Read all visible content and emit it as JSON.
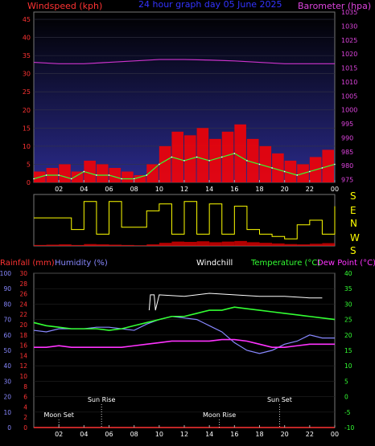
{
  "header": {
    "title": "24 hour graph day  05 June 2025",
    "left_label": "Windspeed (kph)",
    "right_label": "Barometer (hpa)"
  },
  "bottom_header": {
    "rainfall": "Rainfall (mm)",
    "humidity": "Humidity (%)",
    "windchill": "Windchill",
    "temperature": "Temperature (°C)",
    "dewpoint": "Dew Point (°C)"
  },
  "hour_ticks": [
    "02",
    "04",
    "06",
    "08",
    "10",
    "12",
    "14",
    "16",
    "18",
    "20",
    "22",
    "00"
  ],
  "compass_labels": [
    "S",
    "E",
    "N",
    "W",
    "S"
  ],
  "events": [
    {
      "label": "Moon Set",
      "hour": 2.0
    },
    {
      "label": "Sun Rise",
      "hour": 5.4
    },
    {
      "label": "Sun Set",
      "hour": 19.6
    },
    {
      "label": "Moon Rise",
      "hour": 14.8
    }
  ],
  "colors": {
    "wind": "#ff2020",
    "gust_area": "#ff0000",
    "barometer": "#cc33cc",
    "direction": "#ffff00",
    "humidity": "#8888ff",
    "temperature": "#33ff33",
    "dewpoint": "#ff33ff",
    "windchill": "#ffffff",
    "rainfall": "#ff3333"
  },
  "chart_data": [
    {
      "type": "line",
      "title": "24 hour graph day  05 June 2025",
      "ylabel": "Windspeed (kph)",
      "y2label": "Barometer (hpa)",
      "xlim": [
        0,
        24
      ],
      "ylim": [
        0,
        47
      ],
      "y2lim": [
        974,
        1035
      ],
      "y_ticks": [
        0,
        5,
        10,
        15,
        20,
        25,
        30,
        35,
        40,
        45
      ],
      "y2_ticks": [
        975,
        980,
        985,
        990,
        995,
        1000,
        1005,
        1010,
        1015,
        1020,
        1025,
        1030,
        1035
      ],
      "series": [
        {
          "key": "gust",
          "x": [
            0,
            1,
            2,
            3,
            4,
            5,
            6,
            7,
            8,
            9,
            10,
            11,
            12,
            13,
            14,
            15,
            16,
            17,
            18,
            19,
            20,
            21,
            22,
            23,
            24
          ],
          "values": [
            3,
            4,
            5,
            3,
            6,
            5,
            4,
            3,
            2,
            5,
            10,
            14,
            13,
            15,
            12,
            14,
            16,
            12,
            10,
            8,
            6,
            5,
            7,
            9,
            11
          ]
        },
        {
          "key": "wind",
          "x": [
            0,
            1,
            2,
            3,
            4,
            5,
            6,
            7,
            8,
            9,
            10,
            11,
            12,
            13,
            14,
            15,
            16,
            17,
            18,
            19,
            20,
            21,
            22,
            23,
            24
          ],
          "values": [
            1,
            2,
            2,
            1,
            3,
            2,
            2,
            1,
            1,
            2,
            5,
            7,
            6,
            7,
            6,
            7,
            8,
            6,
            5,
            4,
            3,
            2,
            3,
            4,
            5
          ]
        },
        {
          "key": "barometer",
          "x": [
            0,
            2,
            4,
            6,
            8,
            10,
            12,
            14,
            16,
            18,
            20,
            22,
            24
          ],
          "values": [
            1017,
            1016.5,
            1016.5,
            1017,
            1017.5,
            1018,
            1018,
            1017.8,
            1017.5,
            1017,
            1016.5,
            1016.5,
            1016.5
          ]
        }
      ]
    },
    {
      "type": "line",
      "title": "",
      "ylabel": "Wind Direction",
      "xlim": [
        0,
        24
      ],
      "series": [
        {
          "key": "direction",
          "x": [
            0,
            1,
            2,
            3,
            4,
            5,
            6,
            7,
            8,
            9,
            10,
            11,
            12,
            13,
            14,
            15,
            16,
            17,
            18,
            19,
            20,
            21,
            22,
            23,
            24
          ],
          "values": [
            0.55,
            0.55,
            0.55,
            0.3,
            0.9,
            0.2,
            0.9,
            0.35,
            0.35,
            0.7,
            0.85,
            0.2,
            0.9,
            0.2,
            0.85,
            0.2,
            0.8,
            0.3,
            0.2,
            0.15,
            0.1,
            0.4,
            0.5,
            0.2,
            0.8
          ]
        }
      ]
    },
    {
      "type": "line",
      "title": "",
      "xlim": [
        0,
        24
      ],
      "y_left1": {
        "label": "Humidity (%)",
        "ticks": [
          0,
          10,
          20,
          30,
          40,
          50,
          60,
          70,
          80,
          90,
          100
        ],
        "lim": [
          0,
          100
        ]
      },
      "y_left2": {
        "label": "Rainfall (mm)",
        "ticks": [
          0,
          2,
          4,
          6,
          8,
          10,
          12,
          14,
          16,
          18,
          20,
          22,
          24,
          26,
          28,
          30
        ],
        "lim": [
          0,
          30
        ]
      },
      "y_right": {
        "label": "Temperature (°C)",
        "ticks": [
          -10,
          -5,
          0,
          5,
          10,
          15,
          20,
          25,
          30,
          35,
          40
        ],
        "lim": [
          -10,
          40
        ]
      },
      "series": [
        {
          "key": "windchill",
          "unit": "°C",
          "x": [
            9.2,
            9.3,
            9.6,
            9.7,
            10,
            12,
            14,
            16,
            18,
            20,
            22,
            23
          ],
          "values": [
            28,
            33,
            33,
            28,
            33,
            32.5,
            33.5,
            33,
            32.5,
            32.5,
            32,
            32
          ]
        },
        {
          "key": "humidity",
          "unit": "%",
          "x": [
            0,
            1,
            2,
            3,
            4,
            5,
            6,
            7,
            8,
            9,
            10,
            11,
            12,
            13,
            14,
            15,
            16,
            17,
            18,
            19,
            20,
            21,
            22,
            23,
            24
          ],
          "values": [
            63,
            62,
            64,
            64,
            64,
            65,
            65,
            64,
            63,
            67,
            70,
            72,
            71,
            70,
            66,
            62,
            55,
            50,
            48,
            50,
            54,
            56,
            60,
            58,
            58
          ]
        },
        {
          "key": "temperature",
          "unit": "°C",
          "x": [
            0,
            1,
            2,
            3,
            4,
            5,
            6,
            7,
            8,
            9,
            10,
            11,
            12,
            13,
            14,
            15,
            16,
            17,
            18,
            19,
            20,
            21,
            22,
            23,
            24
          ],
          "values": [
            24,
            23,
            22.5,
            22,
            22,
            22,
            21.5,
            22,
            23,
            24,
            25,
            26,
            26,
            27,
            28,
            28,
            29,
            28.5,
            28,
            27.5,
            27,
            26.5,
            26,
            25.5,
            25
          ]
        },
        {
          "key": "dewpoint",
          "unit": "°C",
          "x": [
            0,
            1,
            2,
            3,
            4,
            5,
            6,
            7,
            8,
            9,
            10,
            11,
            12,
            13,
            14,
            15,
            16,
            17,
            18,
            19,
            20,
            21,
            22,
            23,
            24
          ],
          "values": [
            16,
            16,
            16.5,
            16,
            16,
            16,
            16,
            16,
            16.5,
            17,
            17.5,
            18,
            18,
            18,
            18,
            18.5,
            18.5,
            18,
            17,
            16,
            16,
            16.5,
            17,
            17,
            17
          ]
        },
        {
          "key": "rainfall",
          "unit": "mm",
          "x": [
            0,
            24
          ],
          "values": [
            0,
            0
          ]
        }
      ]
    }
  ]
}
